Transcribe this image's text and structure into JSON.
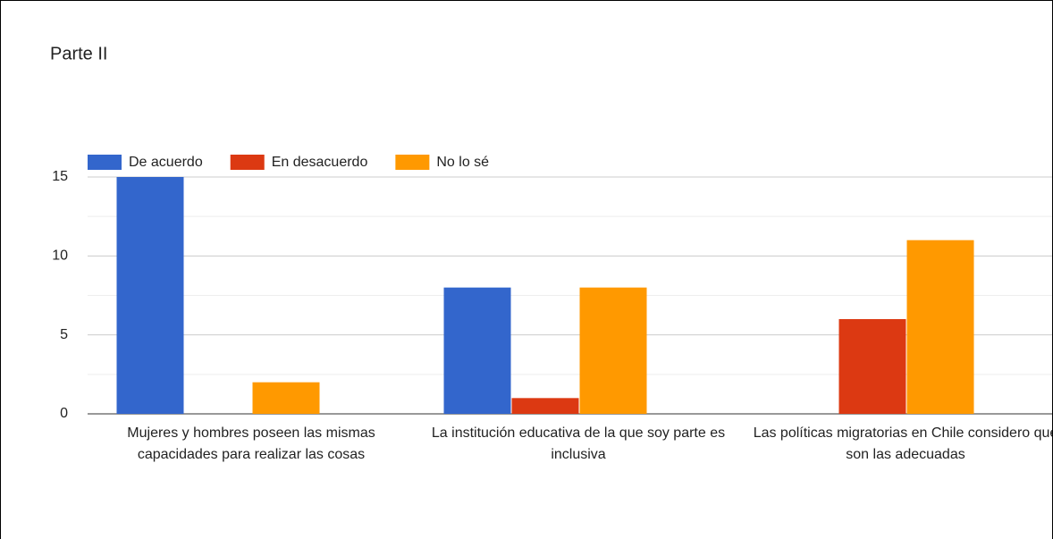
{
  "chart_data": {
    "type": "bar",
    "title": "Parte II",
    "categories": [
      "Mujeres y hombres poseen las mismas capacidades para realizar las cosas",
      "La institución educativa de la que soy parte es inclusiva",
      "Las políticas migratorias en Chile considero que son las adecuadas"
    ],
    "series": [
      {
        "name": "De acuerdo",
        "color": "#3366cc",
        "values": [
          15,
          8,
          0
        ]
      },
      {
        "name": "En desacuerdo",
        "color": "#dc3912",
        "values": [
          0,
          1,
          6
        ]
      },
      {
        "name": "No lo sé",
        "color": "#ff9900",
        "values": [
          2,
          8,
          11
        ]
      }
    ],
    "ylim": [
      0,
      15
    ],
    "yticks": [
      0,
      5,
      10,
      15
    ],
    "grid": true,
    "minor_grid": true,
    "legend": "top"
  }
}
